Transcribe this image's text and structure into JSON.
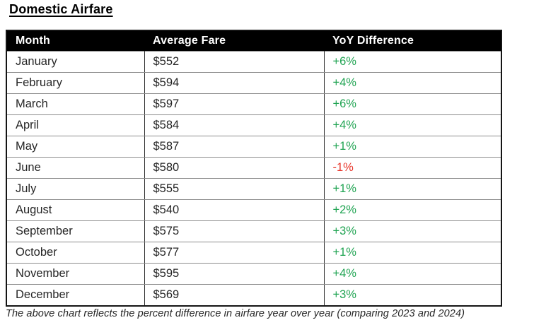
{
  "title": "Domestic Airfare",
  "table": {
    "headers": [
      "Month",
      "Average Fare",
      "YoY Difference"
    ],
    "rows": [
      {
        "month": "January",
        "fare": "$552",
        "yoy": "+6%"
      },
      {
        "month": "February",
        "fare": "$594",
        "yoy": "+4%"
      },
      {
        "month": "March",
        "fare": "$597",
        "yoy": "+6%"
      },
      {
        "month": "April",
        "fare": "$584",
        "yoy": "+4%"
      },
      {
        "month": "May",
        "fare": "$587",
        "yoy": "+1%"
      },
      {
        "month": "June",
        "fare": "$580",
        "yoy": "-1%"
      },
      {
        "month": "July",
        "fare": "$555",
        "yoy": "+1%"
      },
      {
        "month": "August",
        "fare": "$540",
        "yoy": "+2%"
      },
      {
        "month": "September",
        "fare": "$575",
        "yoy": "+3%"
      },
      {
        "month": "October",
        "fare": "$577",
        "yoy": "+1%"
      },
      {
        "month": "November",
        "fare": "$595",
        "yoy": "+4%"
      },
      {
        "month": "December",
        "fare": "$569",
        "yoy": "+3%"
      }
    ]
  },
  "footnote": "The above chart reflects the percent difference in airfare year over year (comparing 2023 and 2024)",
  "colors": {
    "positive": "#21A453",
    "negative": "#E8372C",
    "header_bg": "#000000",
    "header_text": "#FFFFFF",
    "body_text": "#262626"
  }
}
